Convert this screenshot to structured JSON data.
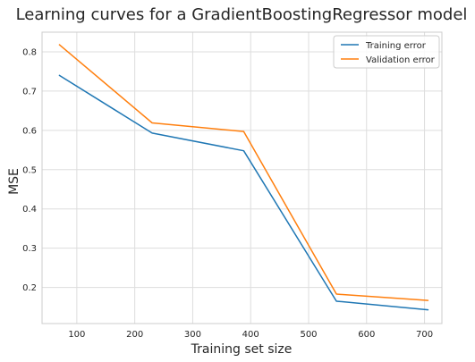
{
  "chart_data": {
    "type": "line",
    "title": "Learning curves for a GradientBoostingRegressor model",
    "xlabel": "Training set size",
    "ylabel": "MSE",
    "xlim": [
      40,
      730
    ],
    "ylim": [
      0.108,
      0.85
    ],
    "xticks": [
      100,
      200,
      300,
      400,
      500,
      600,
      700
    ],
    "yticks": [
      0.2,
      0.3,
      0.4,
      0.5,
      0.6,
      0.7,
      0.8
    ],
    "x": [
      70,
      230,
      388,
      548,
      706
    ],
    "series": [
      {
        "name": "Training error",
        "color": "#1f77b4",
        "values": [
          0.74,
          0.593,
          0.548,
          0.165,
          0.143
        ]
      },
      {
        "name": "Validation error",
        "color": "#ff7f0e",
        "values": [
          0.818,
          0.619,
          0.597,
          0.183,
          0.167
        ]
      }
    ],
    "grid": true,
    "legend_position": "top-right"
  }
}
